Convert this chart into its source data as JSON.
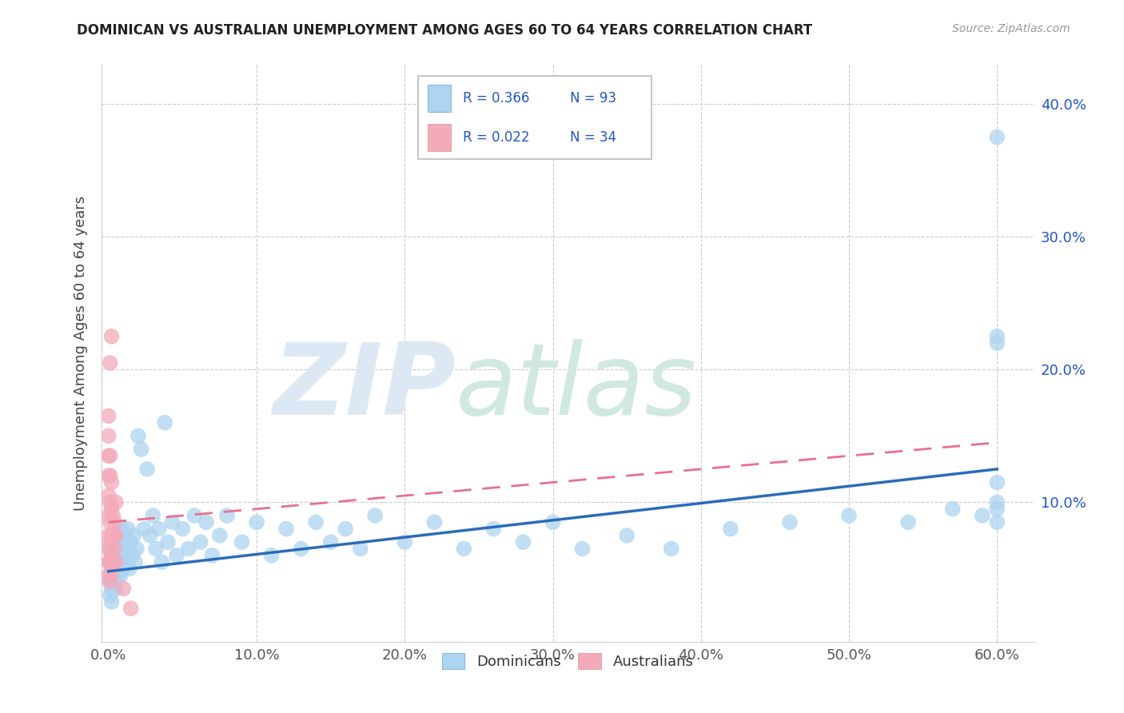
{
  "title": "DOMINICAN VS AUSTRALIAN UNEMPLOYMENT AMONG AGES 60 TO 64 YEARS CORRELATION CHART",
  "source": "Source: ZipAtlas.com",
  "ylabel": "Unemployment Among Ages 60 to 64 years",
  "xlim_min": -0.005,
  "xlim_max": 0.625,
  "ylim_min": -0.005,
  "ylim_max": 0.43,
  "xticks": [
    0.0,
    0.1,
    0.2,
    0.3,
    0.4,
    0.5,
    0.6
  ],
  "xticklabels": [
    "0.0%",
    "10.0%",
    "20.0%",
    "30.0%",
    "40.0%",
    "50.0%",
    "60.0%"
  ],
  "yticks": [
    0.0,
    0.1,
    0.2,
    0.3,
    0.4
  ],
  "yticklabels": [
    "",
    "10.0%",
    "20.0%",
    "30.0%",
    "40.0%"
  ],
  "dom_color": "#ADD4F0",
  "aus_color": "#F4AABB",
  "dom_line_color": "#2B6CB8",
  "aus_line_color": "#E87090",
  "grid_color": "#cccccc",
  "legend_text_color": "#2255CC",
  "R_dom": "0.366",
  "N_dom": "93",
  "R_aus": "0.022",
  "N_aus": "34",
  "dom_line_start_x": 0.0,
  "dom_line_end_x": 0.6,
  "dom_line_start_y": 0.048,
  "dom_line_end_y": 0.125,
  "aus_line_start_x": 0.0,
  "aus_line_end_x": 0.6,
  "aus_line_start_y": 0.085,
  "aus_line_end_y": 0.145,
  "dom_scatter_x": [
    0.001,
    0.001,
    0.001,
    0.001,
    0.001,
    0.002,
    0.002,
    0.002,
    0.002,
    0.002,
    0.003,
    0.003,
    0.003,
    0.004,
    0.004,
    0.004,
    0.005,
    0.005,
    0.005,
    0.005,
    0.006,
    0.006,
    0.006,
    0.007,
    0.007,
    0.008,
    0.008,
    0.009,
    0.009,
    0.01,
    0.01,
    0.011,
    0.012,
    0.013,
    0.014,
    0.015,
    0.016,
    0.017,
    0.018,
    0.019,
    0.02,
    0.022,
    0.024,
    0.026,
    0.028,
    0.03,
    0.032,
    0.034,
    0.036,
    0.038,
    0.04,
    0.043,
    0.046,
    0.05,
    0.054,
    0.058,
    0.062,
    0.066,
    0.07,
    0.075,
    0.08,
    0.09,
    0.1,
    0.11,
    0.12,
    0.13,
    0.14,
    0.15,
    0.16,
    0.17,
    0.18,
    0.2,
    0.22,
    0.24,
    0.26,
    0.28,
    0.3,
    0.32,
    0.35,
    0.38,
    0.42,
    0.46,
    0.5,
    0.54,
    0.57,
    0.59,
    0.6,
    0.6,
    0.6,
    0.6,
    0.6,
    0.6,
    0.6
  ],
  "dom_scatter_y": [
    0.055,
    0.045,
    0.065,
    0.04,
    0.03,
    0.06,
    0.05,
    0.04,
    0.035,
    0.025,
    0.055,
    0.045,
    0.035,
    0.065,
    0.05,
    0.04,
    0.07,
    0.055,
    0.045,
    0.035,
    0.075,
    0.06,
    0.045,
    0.08,
    0.055,
    0.07,
    0.045,
    0.08,
    0.06,
    0.075,
    0.05,
    0.065,
    0.055,
    0.08,
    0.05,
    0.07,
    0.06,
    0.075,
    0.055,
    0.065,
    0.15,
    0.14,
    0.08,
    0.125,
    0.075,
    0.09,
    0.065,
    0.08,
    0.055,
    0.16,
    0.07,
    0.085,
    0.06,
    0.08,
    0.065,
    0.09,
    0.07,
    0.085,
    0.06,
    0.075,
    0.09,
    0.07,
    0.085,
    0.06,
    0.08,
    0.065,
    0.085,
    0.07,
    0.08,
    0.065,
    0.09,
    0.07,
    0.085,
    0.065,
    0.08,
    0.07,
    0.085,
    0.065,
    0.075,
    0.065,
    0.08,
    0.085,
    0.09,
    0.085,
    0.095,
    0.09,
    0.375,
    0.22,
    0.225,
    0.1,
    0.095,
    0.085,
    0.115
  ],
  "aus_scatter_x": [
    0.0,
    0.0,
    0.0,
    0.0,
    0.0,
    0.0,
    0.0,
    0.0,
    0.0,
    0.0,
    0.001,
    0.001,
    0.001,
    0.001,
    0.001,
    0.001,
    0.001,
    0.001,
    0.002,
    0.002,
    0.002,
    0.002,
    0.002,
    0.002,
    0.003,
    0.003,
    0.003,
    0.004,
    0.004,
    0.005,
    0.005,
    0.005,
    0.01,
    0.015
  ],
  "aus_scatter_y": [
    0.045,
    0.055,
    0.065,
    0.075,
    0.09,
    0.105,
    0.12,
    0.135,
    0.15,
    0.165,
    0.04,
    0.055,
    0.07,
    0.085,
    0.1,
    0.12,
    0.135,
    0.205,
    0.045,
    0.06,
    0.075,
    0.095,
    0.115,
    0.225,
    0.055,
    0.075,
    0.09,
    0.065,
    0.085,
    0.055,
    0.075,
    0.1,
    0.035,
    0.02
  ]
}
